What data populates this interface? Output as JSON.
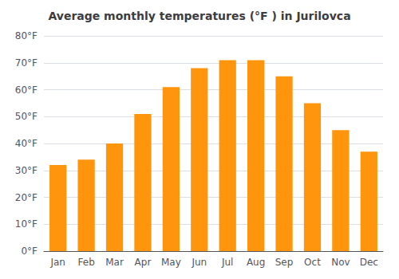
{
  "chart_data": {
    "type": "bar",
    "title": "Average monthly temperatures (°F ) in Jurilovca",
    "categories": [
      "Jan",
      "Feb",
      "Mar",
      "Apr",
      "May",
      "Jun",
      "Jul",
      "Aug",
      "Sep",
      "Oct",
      "Nov",
      "Dec"
    ],
    "values": [
      32,
      34,
      40,
      51,
      61,
      68,
      71,
      71,
      65,
      55,
      45,
      37
    ],
    "color": "#ff940d",
    "ylim": [
      0,
      80
    ],
    "yticks": [
      {
        "value": 0,
        "label": "0°F"
      },
      {
        "value": 10,
        "label": "10°F"
      },
      {
        "value": 20,
        "label": "20°F"
      },
      {
        "value": 30,
        "label": "30°F"
      },
      {
        "value": 40,
        "label": "40°F"
      },
      {
        "value": 50,
        "label": "50°F"
      },
      {
        "value": 60,
        "label": "60°F"
      },
      {
        "value": 70,
        "label": "70°F"
      },
      {
        "value": 80,
        "label": "80°F"
      }
    ],
    "grid": true
  }
}
